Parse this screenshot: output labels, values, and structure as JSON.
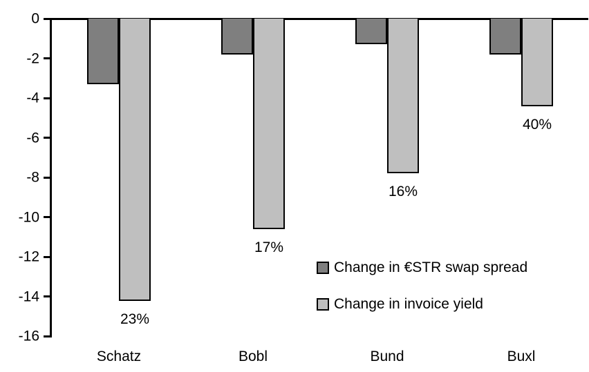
{
  "chart_data": {
    "type": "bar",
    "title": "",
    "categories": [
      "Schatz",
      "Bobl",
      "Bund",
      "Buxl"
    ],
    "series": [
      {
        "name": "Change in €STR swap spread",
        "color": "#7f7f7f",
        "values": [
          -3.3,
          -1.8,
          -1.3,
          -1.8
        ]
      },
      {
        "name": "Change in invoice yield",
        "color": "#bfbfbf",
        "values": [
          -14.2,
          -10.6,
          -7.8,
          -4.4
        ],
        "data_labels": [
          "23%",
          "17%",
          "16%",
          "40%"
        ]
      }
    ],
    "xlabel": "",
    "ylabel": "",
    "ylim": [
      -16,
      0
    ],
    "y_ticks": [
      0,
      -2,
      -4,
      -6,
      -8,
      -10,
      -12,
      -14,
      -16
    ],
    "grid": false,
    "legend_position": "inside-center-right",
    "bar_outline_color": "#000000",
    "axis_color": "#000000",
    "background_color": "#ffffff"
  }
}
